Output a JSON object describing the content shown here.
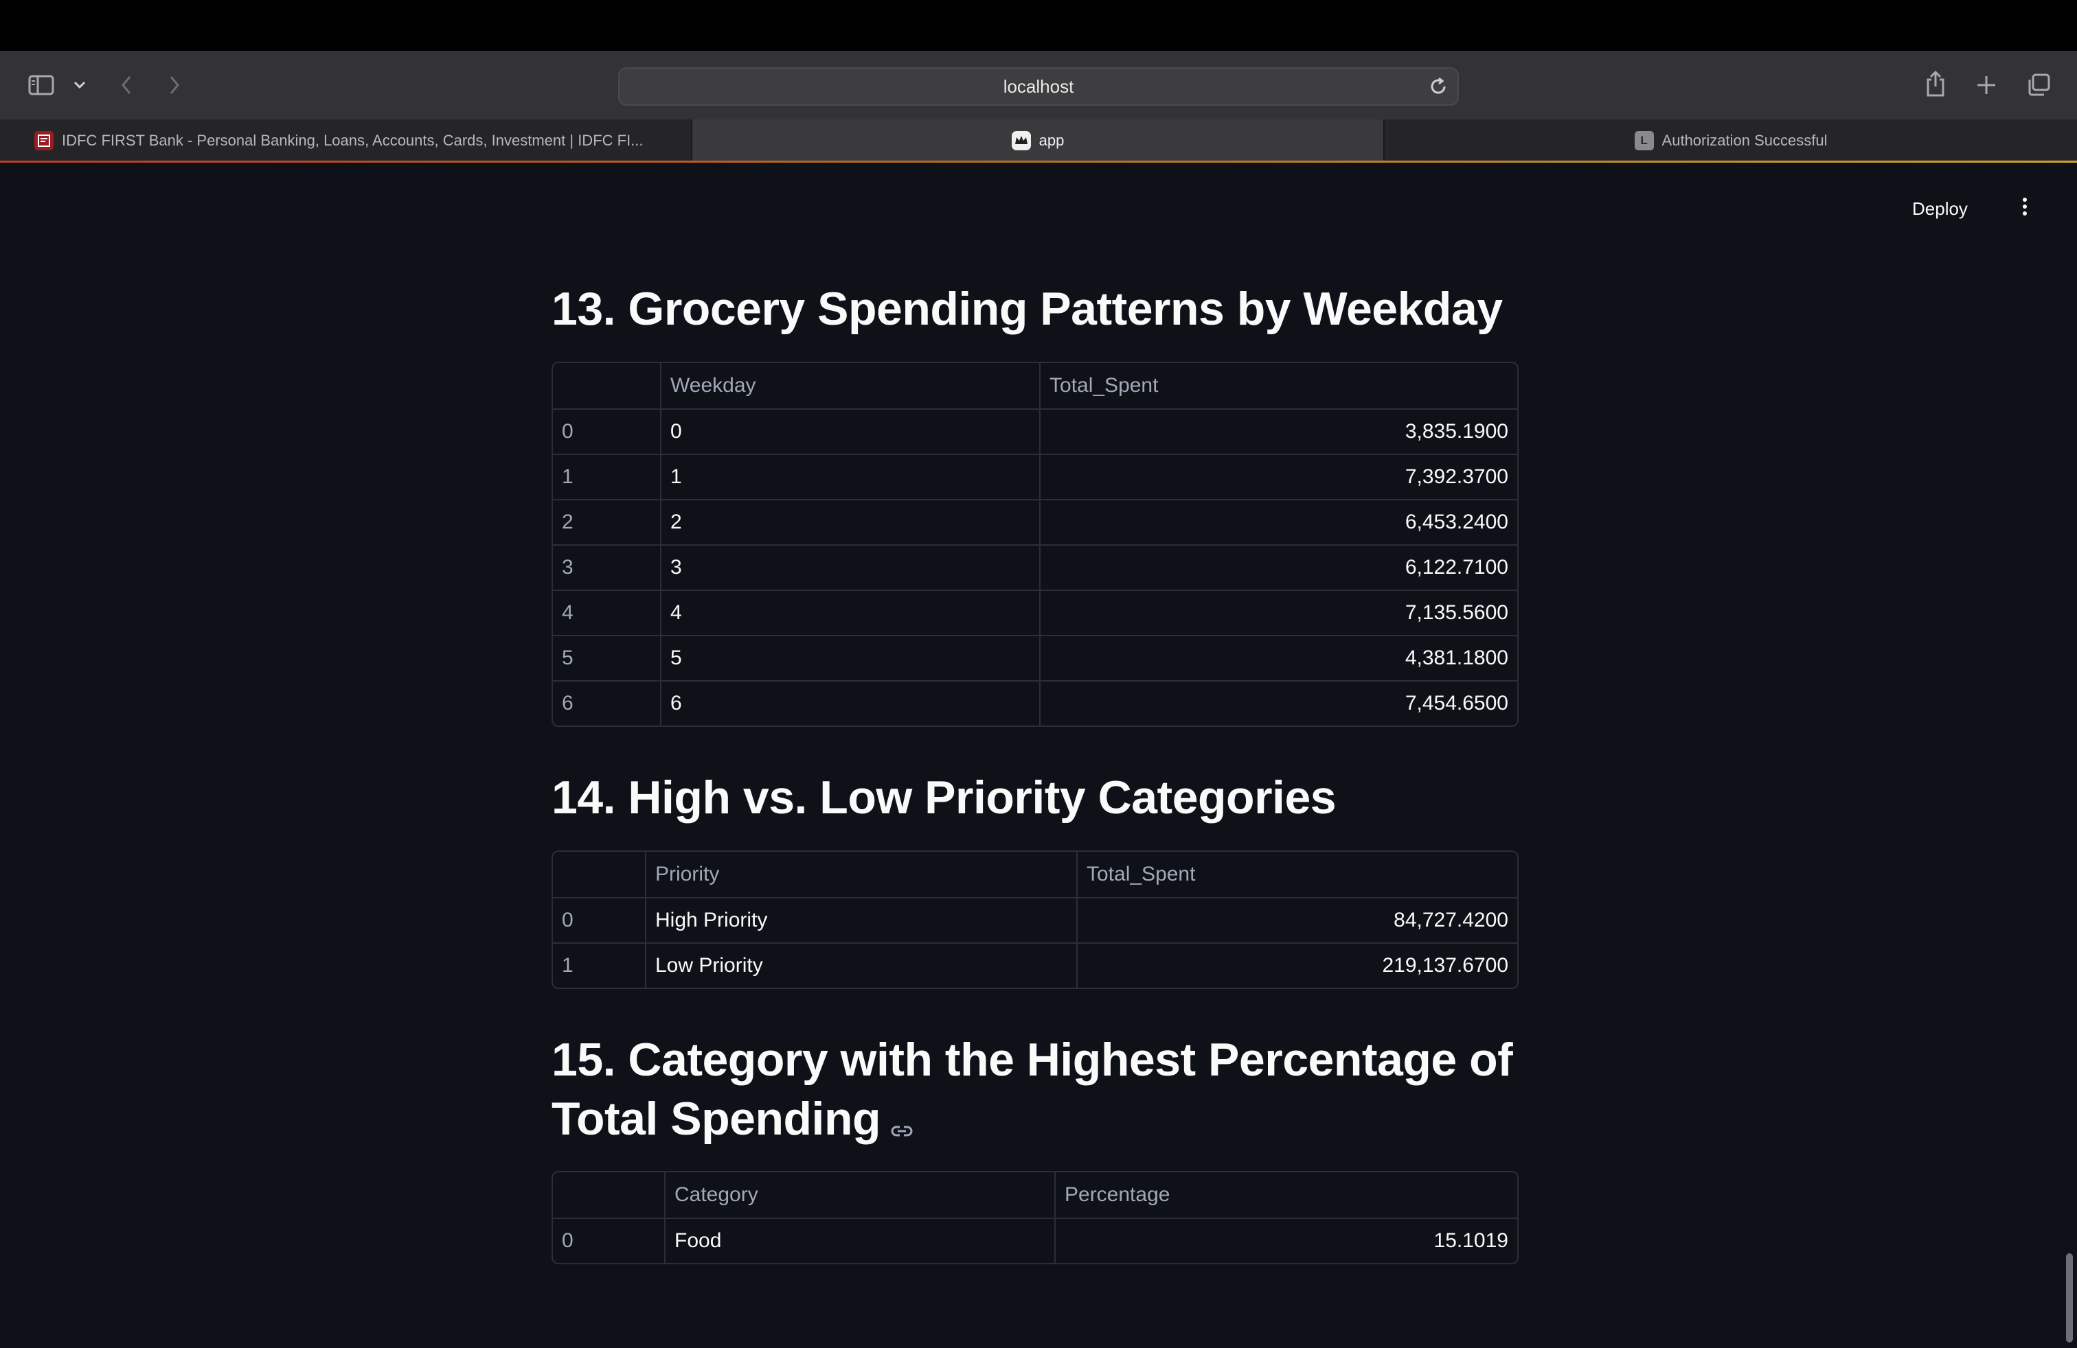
{
  "browser": {
    "url": "localhost",
    "tabs": [
      {
        "label": "IDFC FIRST Bank - Personal Banking, Loans, Accounts, Cards, Investment | IDFC FI...",
        "favicon": "idfc-bank-icon"
      },
      {
        "label": "app",
        "favicon": "streamlit-crown-icon"
      },
      {
        "label": "Authorization Successful",
        "favicon": "L"
      }
    ]
  },
  "header": {
    "deploy_label": "Deploy"
  },
  "sections": {
    "s13": {
      "title": "13. Grocery Spending Patterns by Weekday",
      "columns": [
        "",
        "Weekday",
        "Total_Spent"
      ],
      "rows": [
        [
          "0",
          "0",
          "3,835.1900"
        ],
        [
          "1",
          "1",
          "7,392.3700"
        ],
        [
          "2",
          "2",
          "6,453.2400"
        ],
        [
          "3",
          "3",
          "6,122.7100"
        ],
        [
          "4",
          "4",
          "7,135.5600"
        ],
        [
          "5",
          "5",
          "4,381.1800"
        ],
        [
          "6",
          "6",
          "7,454.6500"
        ]
      ]
    },
    "s14": {
      "title": "14. High vs. Low Priority Categories",
      "columns": [
        "",
        "Priority",
        "Total_Spent"
      ],
      "rows": [
        [
          "0",
          "High Priority",
          "84,727.4200"
        ],
        [
          "1",
          "Low Priority",
          "219,137.6700"
        ]
      ]
    },
    "s15": {
      "title_line1": "15. Category with the Highest Percentage of",
      "title_line2": "Total Spending",
      "columns": [
        "",
        "Category",
        "Percentage"
      ],
      "rows": [
        [
          "0",
          "Food",
          "15.1019"
        ]
      ]
    }
  },
  "colors": {
    "background": "#0e1117",
    "text": "#fafafa",
    "muted": "#a3a8b8",
    "border": "#2b2e36"
  }
}
